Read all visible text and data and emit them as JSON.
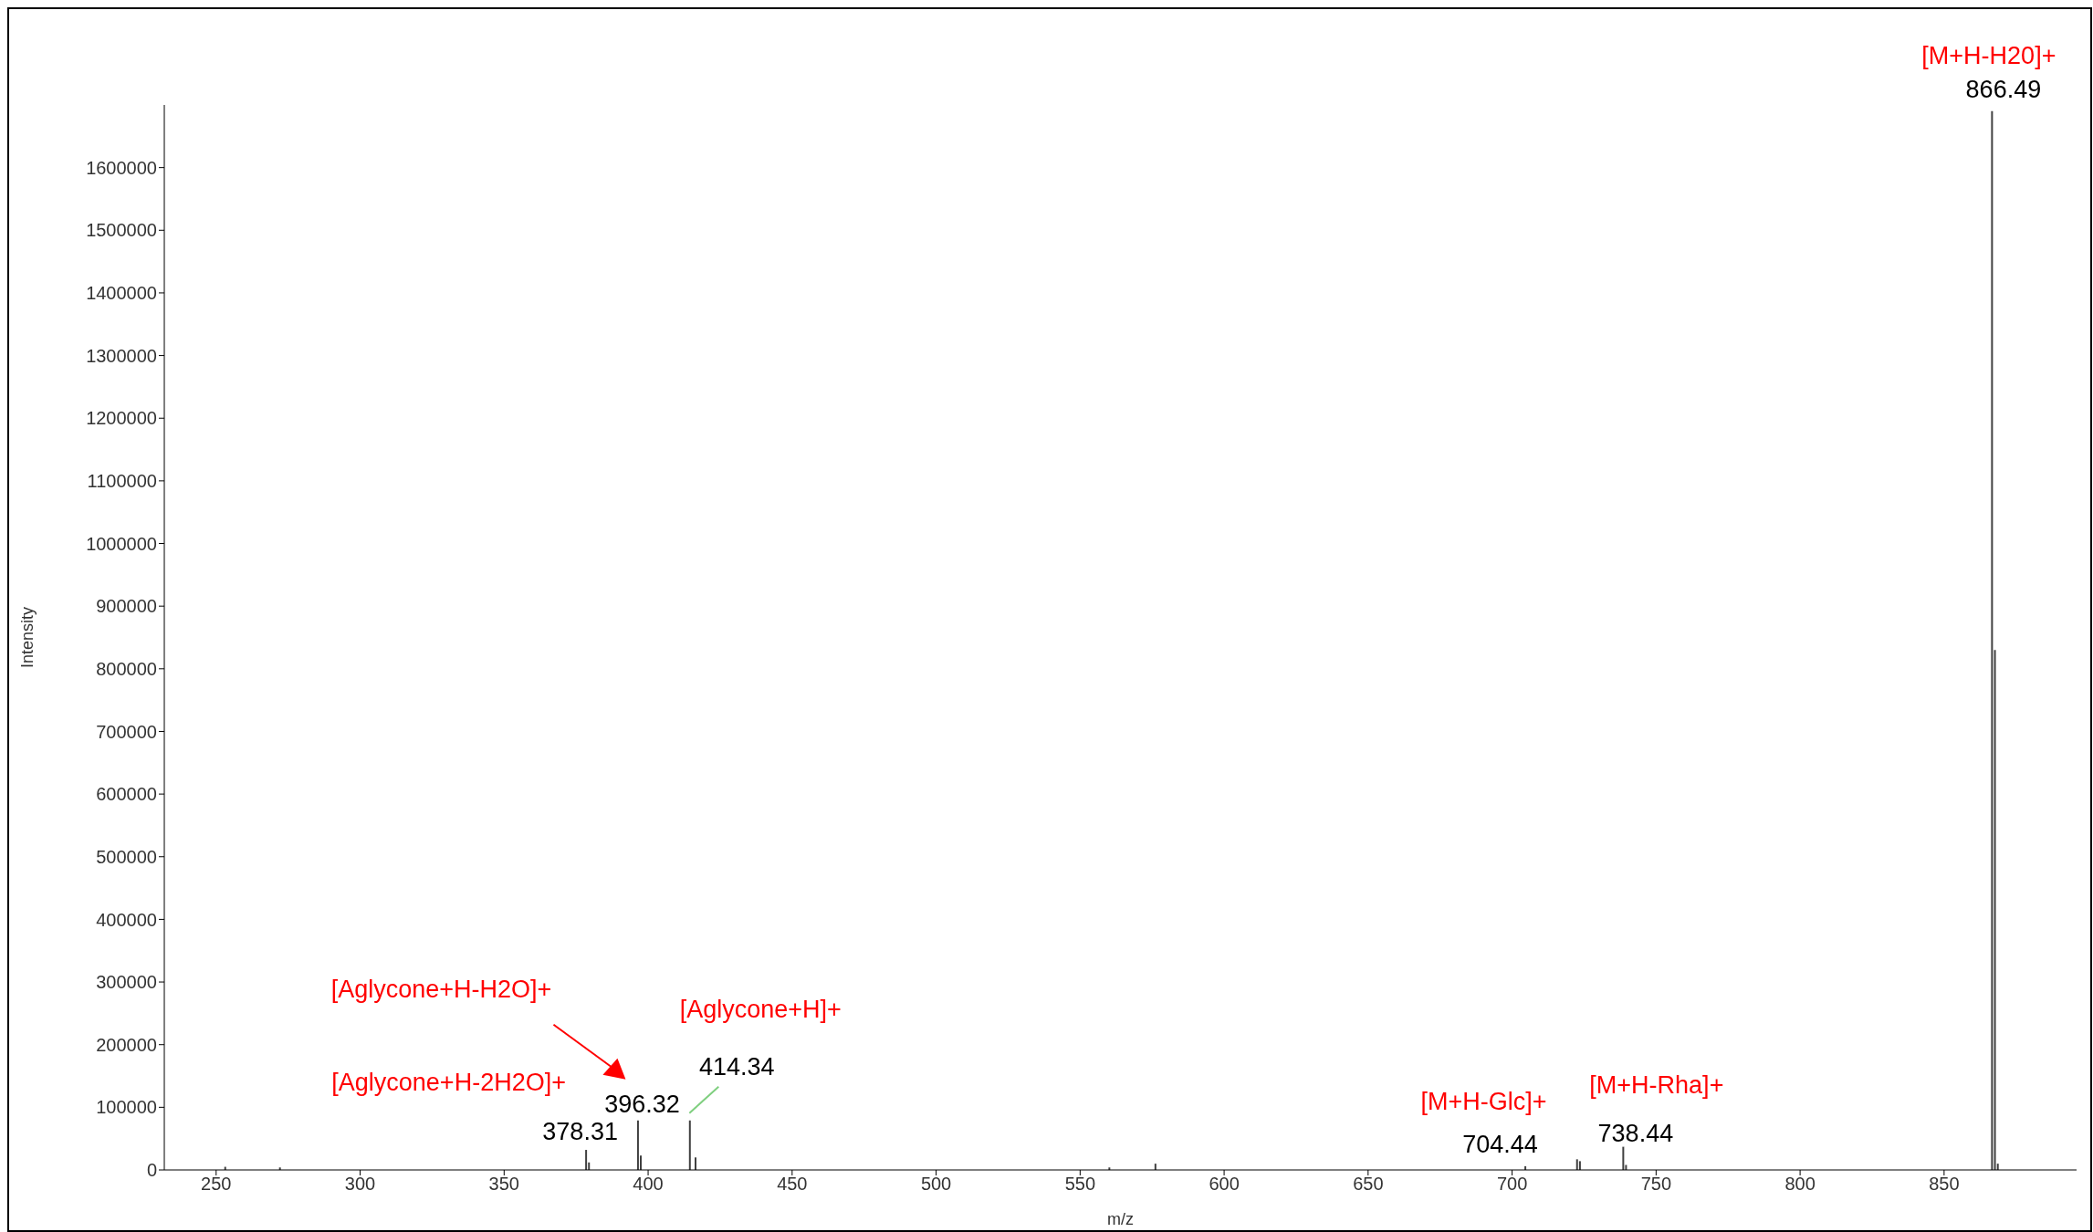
{
  "chart_data": {
    "type": "bar",
    "xlabel": "m/z",
    "ylabel": "Intensity",
    "x": [
      253,
      272,
      378.31,
      379.3,
      396.32,
      397.3,
      414.34,
      416.3,
      560,
      576,
      704.44,
      722.4,
      723.4,
      738.44,
      739.4,
      866.49,
      867.5,
      868.5
    ],
    "values": [
      5000,
      4000,
      32000,
      12000,
      79000,
      23000,
      79000,
      20000,
      4000,
      10000,
      6000,
      17000,
      14000,
      37000,
      8000,
      1690000,
      830000,
      10000
    ],
    "color": "#404040",
    "xlim": [
      232,
      896
    ],
    "xticks": [
      250,
      300,
      350,
      400,
      450,
      500,
      550,
      600,
      650,
      700,
      750,
      800,
      850
    ],
    "ylim": [
      0,
      1700000
    ],
    "yticks": [
      0,
      100000,
      200000,
      300000,
      400000,
      500000,
      600000,
      700000,
      800000,
      900000,
      1000000,
      1100000,
      1200000,
      1300000,
      1400000,
      1500000,
      1600000
    ],
    "grid": false,
    "legend": false,
    "annotations": [
      {
        "text": "[M+H-H20]+",
        "x": 866.49,
        "y": 1690000
      },
      {
        "text": "866.49",
        "x": 866.49,
        "y": 1690000
      },
      "[Aglycone+H-H2O]+",
      {
        "text": "396.32",
        "x": 396.32,
        "y": 79000
      },
      "[Aglycone+H]+",
      {
        "text": "414.34",
        "x": 414.34,
        "y": 79000
      },
      {
        "text": "[Aglycone+H-2H2O]+",
        "x": 378.31,
        "y": 32000
      },
      {
        "text": "378.31",
        "x": 378.31,
        "y": 32000
      },
      {
        "text": "[M+H-Glc]+",
        "x": 704.44,
        "y": 6000
      },
      {
        "text": "704.44",
        "x": 704.44,
        "y": 6000
      },
      {
        "text": "[M+H-Rha]+",
        "x": 738.44,
        "y": 37000
      },
      {
        "text": "738.44",
        "x": 738.44,
        "y": 37000
      }
    ]
  }
}
